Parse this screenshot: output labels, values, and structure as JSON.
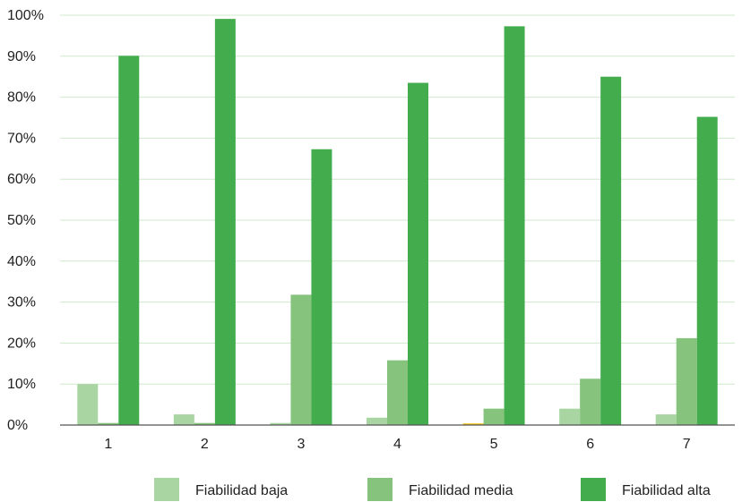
{
  "chart_data": {
    "type": "bar",
    "categories": [
      "1",
      "2",
      "3",
      "4",
      "5",
      "6",
      "7"
    ],
    "ylim": [
      0,
      100
    ],
    "y_ticks": [
      0,
      10,
      20,
      30,
      40,
      50,
      60,
      70,
      80,
      90,
      100
    ],
    "y_tick_labels": [
      "0%",
      "10%",
      "20%",
      "30%",
      "40%",
      "50%",
      "60%",
      "70%",
      "80%",
      "90%",
      "100%"
    ],
    "grid": true,
    "legend_position": "bottom",
    "series": [
      {
        "name": "Fiabilidad baja",
        "color": "#a8d5a2",
        "values": [
          10,
          2.6,
          0.5,
          1.8,
          0,
          4,
          2.6
        ]
      },
      {
        "name": "Fiabilidad media",
        "color": "#86c47e",
        "values": [
          0.5,
          0.5,
          31.8,
          15.8,
          4,
          11.3,
          21.2
        ]
      },
      {
        "name": "Fiabilidad alta",
        "color": "#43ad4e",
        "values": [
          90.1,
          99.1,
          67.3,
          83.5,
          97.3,
          85,
          75.2
        ]
      }
    ],
    "extra_marks": [
      {
        "category": "5",
        "slot": 0,
        "color": "#f0c419",
        "value": 0.4
      }
    ]
  }
}
